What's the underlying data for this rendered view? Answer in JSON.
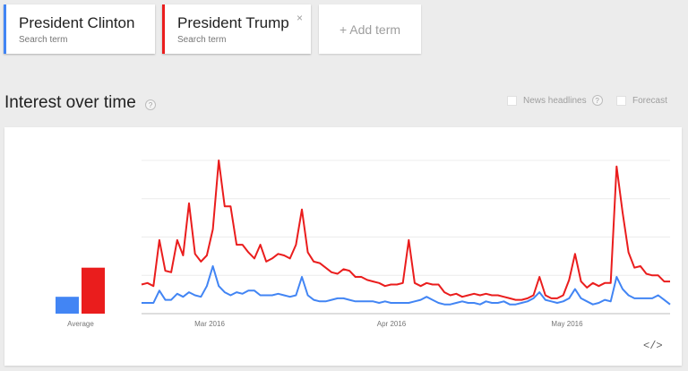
{
  "terms": [
    {
      "name": "President Clinton",
      "subtitle": "Search term",
      "color": "#4285f4"
    },
    {
      "name": "President Trump",
      "subtitle": "Search term",
      "color": "#ea1d1d",
      "close_symbol": "×"
    }
  ],
  "add_term_label": "+ Add term",
  "section": {
    "title": "Interest over time",
    "help_symbol": "?",
    "options": [
      {
        "label": "News headlines",
        "checked": false
      },
      {
        "label": "Forecast",
        "checked": false
      }
    ]
  },
  "embed_label": "</>",
  "chart_data": {
    "type": "line",
    "title": "",
    "xlabel": "",
    "ylabel": "",
    "ylim": [
      0,
      100
    ],
    "grid": true,
    "x_tick_labels": [
      "Mar 2016",
      "Apr 2016",
      "May 2016"
    ],
    "average": {
      "label": "Average",
      "values": [
        {
          "name": "President Clinton",
          "value": 11,
          "color": "#4285f4"
        },
        {
          "name": "President Trump",
          "value": 30,
          "color": "#ea1d1d"
        }
      ]
    },
    "series": [
      {
        "name": "President Trump",
        "color": "#ea1d1d",
        "values": [
          19,
          20,
          18,
          48,
          28,
          27,
          48,
          38,
          72,
          39,
          34,
          38,
          55,
          100,
          70,
          70,
          45,
          45,
          40,
          36,
          45,
          34,
          36,
          39,
          38,
          36,
          45,
          68,
          40,
          34,
          33,
          30,
          27,
          26,
          29,
          28,
          24,
          24,
          22,
          21,
          20,
          18,
          19,
          19,
          20,
          48,
          20,
          18,
          20,
          19,
          19,
          14,
          12,
          13,
          11,
          12,
          13,
          12,
          13,
          12,
          12,
          11,
          10,
          9,
          9,
          10,
          12,
          24,
          12,
          10,
          10,
          12,
          22,
          39,
          21,
          17,
          20,
          18,
          20,
          20,
          96,
          66,
          40,
          30,
          31,
          26,
          25,
          25,
          21,
          21
        ]
      },
      {
        "name": "President Clinton",
        "color": "#4285f4",
        "values": [
          7,
          7,
          7,
          15,
          9,
          9,
          13,
          11,
          14,
          12,
          11,
          18,
          31,
          18,
          14,
          12,
          14,
          13,
          15,
          15,
          12,
          12,
          12,
          13,
          12,
          11,
          12,
          24,
          12,
          9,
          8,
          8,
          9,
          10,
          10,
          9,
          8,
          8,
          8,
          8,
          7,
          8,
          7,
          7,
          7,
          7,
          8,
          9,
          11,
          9,
          7,
          6,
          6,
          7,
          8,
          7,
          7,
          6,
          8,
          7,
          7,
          8,
          6,
          6,
          7,
          8,
          10,
          14,
          9,
          8,
          7,
          8,
          10,
          16,
          10,
          8,
          6,
          7,
          9,
          8,
          24,
          16,
          12,
          10,
          10,
          10,
          10,
          12,
          9,
          6
        ]
      }
    ]
  }
}
